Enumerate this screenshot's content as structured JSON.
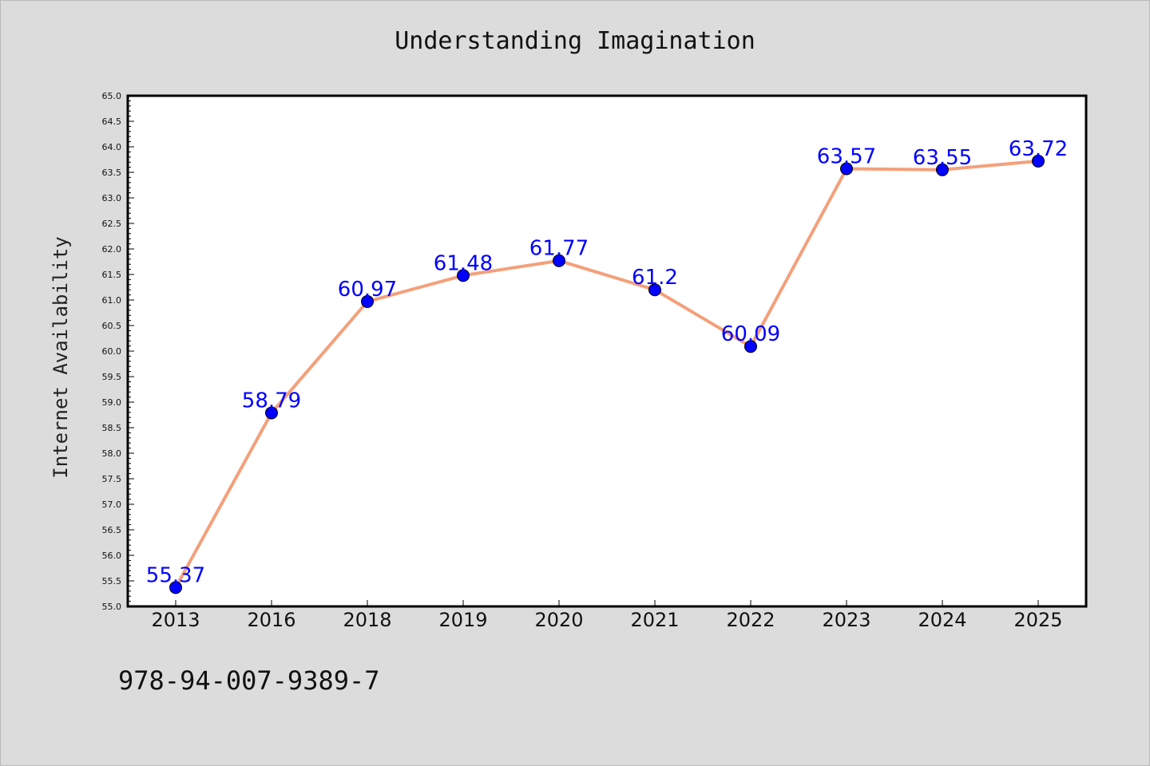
{
  "chart_data": {
    "type": "line",
    "title": "Understanding Imagination",
    "xlabel": "",
    "ylabel": "Internet Availability",
    "categories": [
      "2013",
      "2016",
      "2018",
      "2019",
      "2020",
      "2021",
      "2022",
      "2023",
      "2024",
      "2025"
    ],
    "series": [
      {
        "values": [
          55.37,
          58.79,
          60.97,
          61.48,
          61.77,
          61.2,
          60.09,
          63.57,
          63.55,
          63.72
        ],
        "labels": [
          "55.37",
          "58.79",
          "60.97",
          "61.48",
          "61.77",
          "61.2",
          "60.09",
          "63.57",
          "63.55",
          "63.72"
        ],
        "line_color": "#f4a07a",
        "marker_color": "#0000ff"
      }
    ],
    "ylim": [
      55.0,
      65.0
    ],
    "yticks": [
      "55.0",
      "55.5",
      "56.0",
      "56.5",
      "57.0",
      "57.5",
      "58.0",
      "58.5",
      "59.0",
      "59.5",
      "60.0",
      "60.5",
      "61.0",
      "61.5",
      "62.0",
      "62.5",
      "63.0",
      "63.5",
      "64.0",
      "64.5",
      "65.0"
    ],
    "grid": false,
    "legend": "none"
  },
  "footer": {
    "isbn": "978-94-007-9389-7"
  },
  "colors": {
    "background": "#dcdcdc",
    "plot_background": "#ffffff",
    "line": "#f4a07a",
    "marker": "#0000ff",
    "data_label": "#0000ff"
  }
}
